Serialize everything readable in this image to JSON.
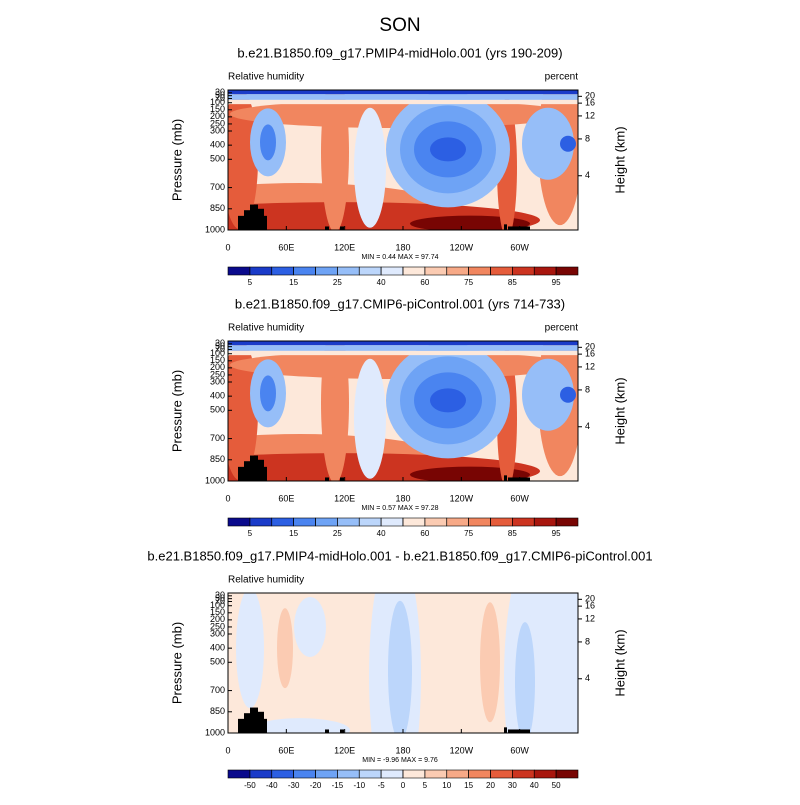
{
  "title": "SON",
  "chart_data": [
    {
      "type": "contour",
      "title": "b.e21.B1850.f09_g17.PMIP4-midHolo.001 (yrs 190-209)",
      "left_label": "Relative humidity",
      "right_label": "percent",
      "ylabel": "Pressure (mb)",
      "y2label": "Height (km)",
      "xlim": [
        0,
        360
      ],
      "xticks": [
        0,
        {
          "value": 60,
          "label": "60E"
        },
        {
          "value": 120,
          "label": "120E"
        },
        180,
        {
          "value": 240,
          "label": "120W"
        },
        {
          "value": 300,
          "label": "60W"
        }
      ],
      "ylim": [
        1000,
        10
      ],
      "yticks": [
        1000,
        850,
        700,
        500,
        400,
        300,
        250,
        200,
        150,
        100,
        70,
        50,
        30
      ],
      "y2ticks": [
        4,
        8,
        12,
        16,
        20
      ],
      "annotation": "MIN =   0.44  MAX =  97.74",
      "levels": [
        5,
        10,
        15,
        20,
        25,
        30,
        40,
        50,
        60,
        70,
        75,
        80,
        85,
        90,
        95
      ],
      "colors": [
        "#0a0a8c",
        "#1a3bc9",
        "#2c5fe3",
        "#4a84f0",
        "#6ea3f5",
        "#96bef8",
        "#bcd6fb",
        "#dfeafd",
        "#fde8da",
        "#fbcbb2",
        "#f7a987",
        "#f1865f",
        "#e55c3b",
        "#cc3420",
        "#a8160e",
        "#780503"
      ]
    },
    {
      "type": "contour",
      "title": "b.e21.B1850.f09_g17.CMIP6-piControl.001 (yrs 714-733)",
      "left_label": "Relative humidity",
      "right_label": "percent",
      "ylabel": "Pressure (mb)",
      "y2label": "Height (km)",
      "xlim": [
        0,
        360
      ],
      "xticks": [
        0,
        {
          "value": 60,
          "label": "60E"
        },
        {
          "value": 120,
          "label": "120E"
        },
        180,
        {
          "value": 240,
          "label": "120W"
        },
        {
          "value": 300,
          "label": "60W"
        }
      ],
      "ylim": [
        1000,
        10
      ],
      "yticks": [
        1000,
        850,
        700,
        500,
        400,
        300,
        250,
        200,
        150,
        100,
        70,
        50,
        30
      ],
      "y2ticks": [
        4,
        8,
        12,
        16,
        20
      ],
      "annotation": "MIN =   0.57  MAX =  97.28",
      "levels": [
        5,
        10,
        15,
        20,
        25,
        30,
        40,
        50,
        60,
        70,
        75,
        80,
        85,
        90,
        95
      ],
      "colors": [
        "#0a0a8c",
        "#1a3bc9",
        "#2c5fe3",
        "#4a84f0",
        "#6ea3f5",
        "#96bef8",
        "#bcd6fb",
        "#dfeafd",
        "#fde8da",
        "#fbcbb2",
        "#f7a987",
        "#f1865f",
        "#e55c3b",
        "#cc3420",
        "#a8160e",
        "#780503"
      ]
    },
    {
      "type": "contour",
      "title": "b.e21.B1850.f09_g17.PMIP4-midHolo.001 - b.e21.B1850.f09_g17.CMIP6-piControl.001",
      "left_label": "Relative humidity",
      "ylabel": "Pressure (mb)",
      "y2label": "Height (km)",
      "xlim": [
        0,
        360
      ],
      "xticks": [
        0,
        {
          "value": 60,
          "label": "60E"
        },
        {
          "value": 120,
          "label": "120E"
        },
        180,
        {
          "value": 240,
          "label": "120W"
        },
        {
          "value": 300,
          "label": "60W"
        }
      ],
      "ylim": [
        1000,
        10
      ],
      "yticks": [
        1000,
        850,
        700,
        500,
        400,
        300,
        250,
        200,
        150,
        100,
        70,
        50,
        30
      ],
      "y2ticks": [
        4,
        8,
        12,
        16,
        20
      ],
      "annotation": "MIN =  -9.96  MAX =   9.76",
      "levels": [
        -50,
        -40,
        -30,
        -20,
        -15,
        -10,
        -5,
        0,
        5,
        10,
        15,
        20,
        30,
        40,
        50
      ],
      "colors": [
        "#0a0a8c",
        "#1a3bc9",
        "#2c5fe3",
        "#4a84f0",
        "#6ea3f5",
        "#96bef8",
        "#bcd6fb",
        "#dfeafd",
        "#fde8da",
        "#fbcbb2",
        "#f7a987",
        "#f1865f",
        "#e55c3b",
        "#cc3420",
        "#a8160e",
        "#780503"
      ]
    }
  ]
}
